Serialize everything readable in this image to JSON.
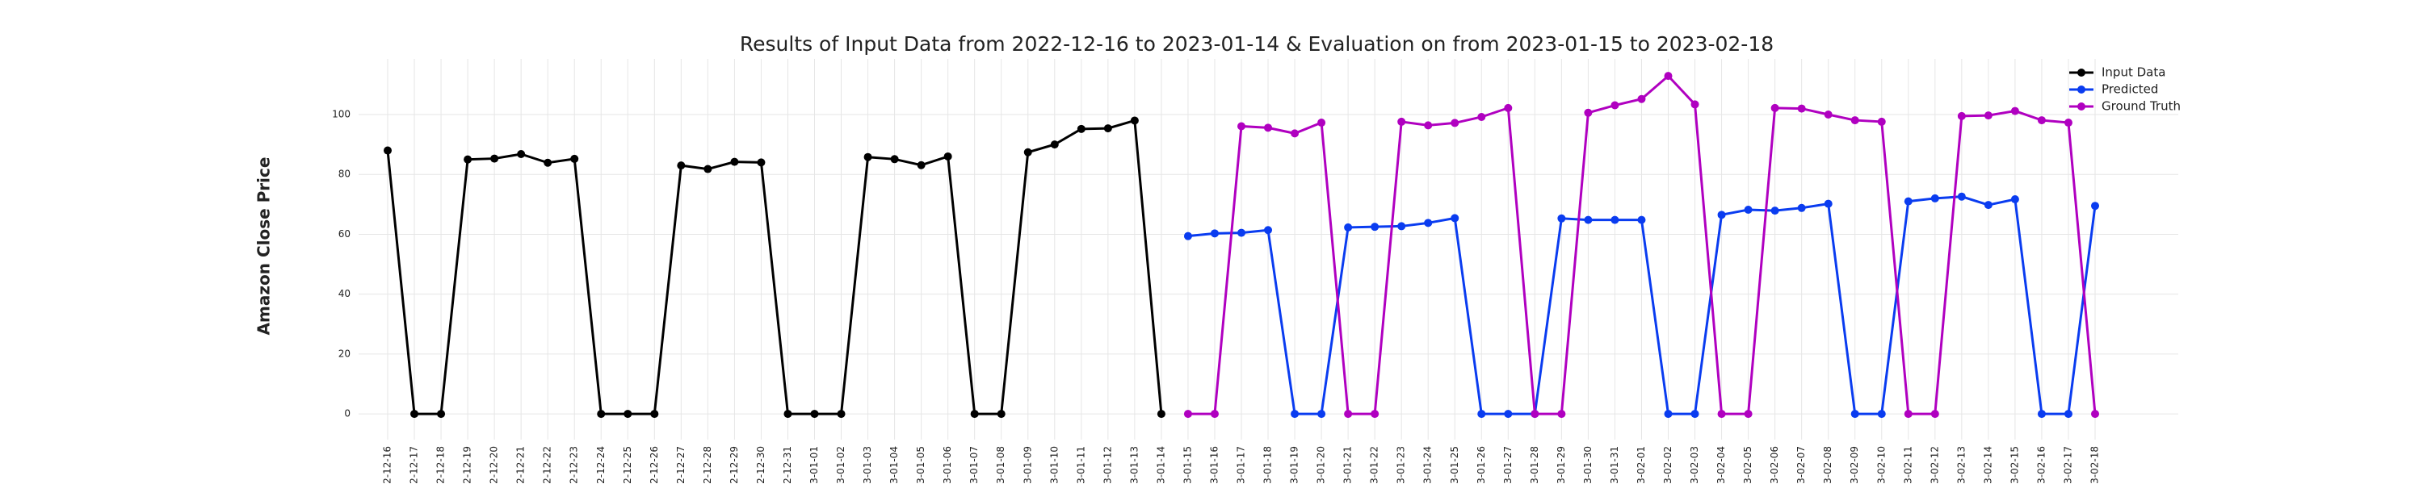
{
  "chart_data": {
    "type": "line",
    "title": "Results of Input Data from 2022-12-16 to 2023-01-14 & Evaluation on from 2023-01-15 to 2023-02-18",
    "y_label": "Amazon Close Price",
    "categories": [
      "2022-12-16",
      "2022-12-17",
      "2022-12-18",
      "2022-12-19",
      "2022-12-20",
      "2022-12-21",
      "2022-12-22",
      "2022-12-23",
      "2022-12-24",
      "2022-12-25",
      "2022-12-26",
      "2022-12-27",
      "2022-12-28",
      "2022-12-29",
      "2022-12-30",
      "2022-12-31",
      "2023-01-01",
      "2023-01-02",
      "2023-01-03",
      "2023-01-04",
      "2023-01-05",
      "2023-01-06",
      "2023-01-07",
      "2023-01-08",
      "2023-01-09",
      "2023-01-10",
      "2023-01-11",
      "2023-01-12",
      "2023-01-13",
      "2023-01-14",
      "2023-01-15",
      "2023-01-16",
      "2023-01-17",
      "2023-01-18",
      "2023-01-19",
      "2023-01-20",
      "2023-01-21",
      "2023-01-22",
      "2023-01-23",
      "2023-01-24",
      "2023-01-25",
      "2023-01-26",
      "2023-01-27",
      "2023-01-28",
      "2023-01-29",
      "2023-01-30",
      "2023-01-31",
      "2023-02-01",
      "2023-02-02",
      "2023-02-03",
      "2023-02-04",
      "2023-02-05",
      "2023-02-06",
      "2023-02-07",
      "2023-02-08",
      "2023-02-09",
      "2023-02-10",
      "2023-02-11",
      "2023-02-12",
      "2023-02-13",
      "2023-02-14",
      "2023-02-15",
      "2023-02-16",
      "2023-02-17",
      "2023-02-18"
    ],
    "series": [
      {
        "name": "Input Data",
        "color": "#000000",
        "values": [
          88,
          0,
          0,
          85,
          85.3,
          86.8,
          83.9,
          85.2,
          0,
          0,
          0,
          83.0,
          81.8,
          84.2,
          84.0,
          0,
          0,
          0,
          85.8,
          85.1,
          83.1,
          86.0,
          0,
          0,
          87.4,
          90.0,
          95.2,
          95.4,
          98.0,
          0,
          null,
          null,
          null,
          null,
          null,
          null,
          null,
          null,
          null,
          null,
          null,
          null,
          null,
          null,
          null,
          null,
          null,
          null,
          null,
          null,
          null,
          null,
          null,
          null,
          null,
          null,
          null,
          null,
          null,
          null,
          null,
          null,
          null,
          null,
          null
        ]
      },
      {
        "name": "Predicted",
        "color": "#0a3cf0",
        "values": [
          null,
          null,
          null,
          null,
          null,
          null,
          null,
          null,
          null,
          null,
          null,
          null,
          null,
          null,
          null,
          null,
          null,
          null,
          null,
          null,
          null,
          null,
          null,
          null,
          null,
          null,
          null,
          null,
          null,
          null,
          59.4,
          60.3,
          60.5,
          61.4,
          0,
          0,
          62.3,
          62.5,
          62.7,
          63.8,
          65.4,
          0,
          0,
          0,
          65.3,
          64.8,
          64.8,
          64.8,
          0,
          0,
          66.5,
          68.2,
          67.9,
          68.8,
          70.2,
          0,
          0,
          71.0,
          72.0,
          72.6,
          69.8,
          71.7,
          0,
          0,
          69.5
        ]
      },
      {
        "name": "Ground Truth",
        "color": "#b000c0",
        "values": [
          null,
          null,
          null,
          null,
          null,
          null,
          null,
          null,
          null,
          null,
          null,
          null,
          null,
          null,
          null,
          null,
          null,
          null,
          null,
          null,
          null,
          null,
          null,
          null,
          null,
          null,
          null,
          null,
          null,
          null,
          0,
          0,
          96.1,
          95.6,
          93.7,
          97.3,
          0,
          0,
          97.6,
          96.4,
          97.2,
          99.2,
          102.2,
          0,
          0,
          100.6,
          103.1,
          105.2,
          112.9,
          103.4,
          0,
          0,
          102.2,
          102.0,
          100.0,
          98.1,
          97.6,
          0,
          0,
          99.5,
          99.7,
          101.2,
          98.1,
          97.3,
          0
        ]
      }
    ],
    "ylim": [
      -8.6,
      118.6
    ],
    "yticks": [
      0,
      20,
      40,
      60,
      80,
      100
    ],
    "grid": true,
    "legend": "upper right"
  }
}
